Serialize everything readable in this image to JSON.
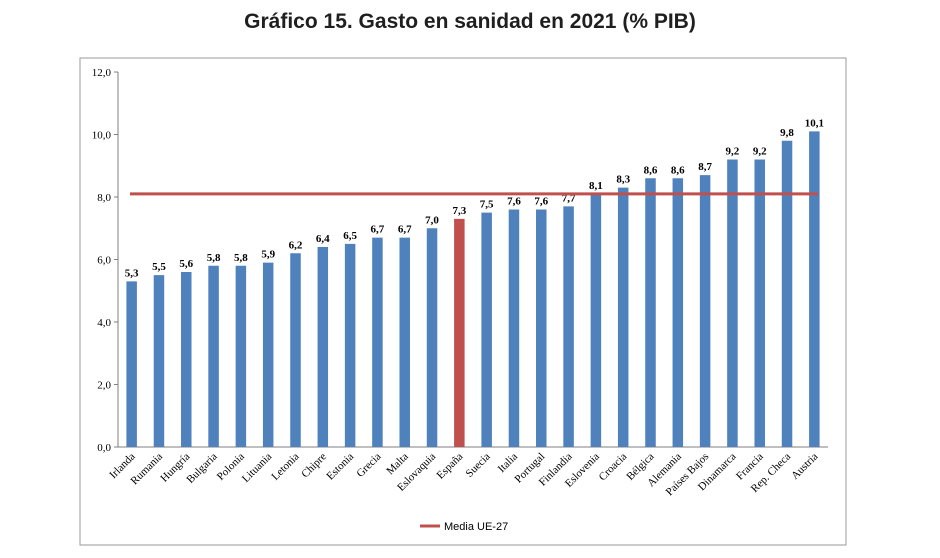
{
  "chart_data": {
    "type": "bar",
    "title": "Gráfico 15. Gasto en sanidad en 2021 (% PIB)",
    "xlabel": "",
    "ylabel": "",
    "ylim": [
      0,
      12
    ],
    "yticks": [
      "0,0",
      "2,0",
      "4,0",
      "6,0",
      "8,0",
      "10,0",
      "12,0"
    ],
    "categories": [
      "Irlanda",
      "Rumania",
      "Hungría",
      "Bulgaria",
      "Polonia",
      "Lituania",
      "Letonia",
      "Chipre",
      "Estonia",
      "Grecia",
      "Malta",
      "Eslovaquia",
      "España",
      "Suecia",
      "Italia",
      "Portugal",
      "Finlandia",
      "Eslovenia",
      "Croacia",
      "Bélgica",
      "Alemania",
      "Países Bajos",
      "Dinamarca",
      "Francia",
      "Rep. Checa",
      "Austria"
    ],
    "values": [
      5.3,
      5.5,
      5.6,
      5.8,
      5.8,
      5.9,
      6.2,
      6.4,
      6.5,
      6.7,
      6.7,
      7.0,
      7.3,
      7.5,
      7.6,
      7.6,
      7.7,
      8.1,
      8.3,
      8.6,
      8.6,
      8.7,
      9.2,
      9.2,
      9.8,
      10.1
    ],
    "value_labels": [
      "5,3",
      "5,5",
      "5,6",
      "5,8",
      "5,8",
      "5,9",
      "6,2",
      "6,4",
      "6,5",
      "6,7",
      "6,7",
      "7,0",
      "7,3",
      "7,5",
      "7,6",
      "7,6",
      "7,7",
      "8,1",
      "8,3",
      "8,6",
      "8,6",
      "8,7",
      "9,2",
      "9,2",
      "9,8",
      "10,1"
    ],
    "highlight_category": "España",
    "reference_line": {
      "name": "Media UE-27",
      "value": 8.1
    },
    "legend": {
      "position": "bottom",
      "entries": [
        "Media UE-27"
      ]
    },
    "grid": false,
    "colors": {
      "bar": "#4f81bd",
      "highlight": "#c0504d",
      "reference_line": "#c0504d"
    }
  }
}
